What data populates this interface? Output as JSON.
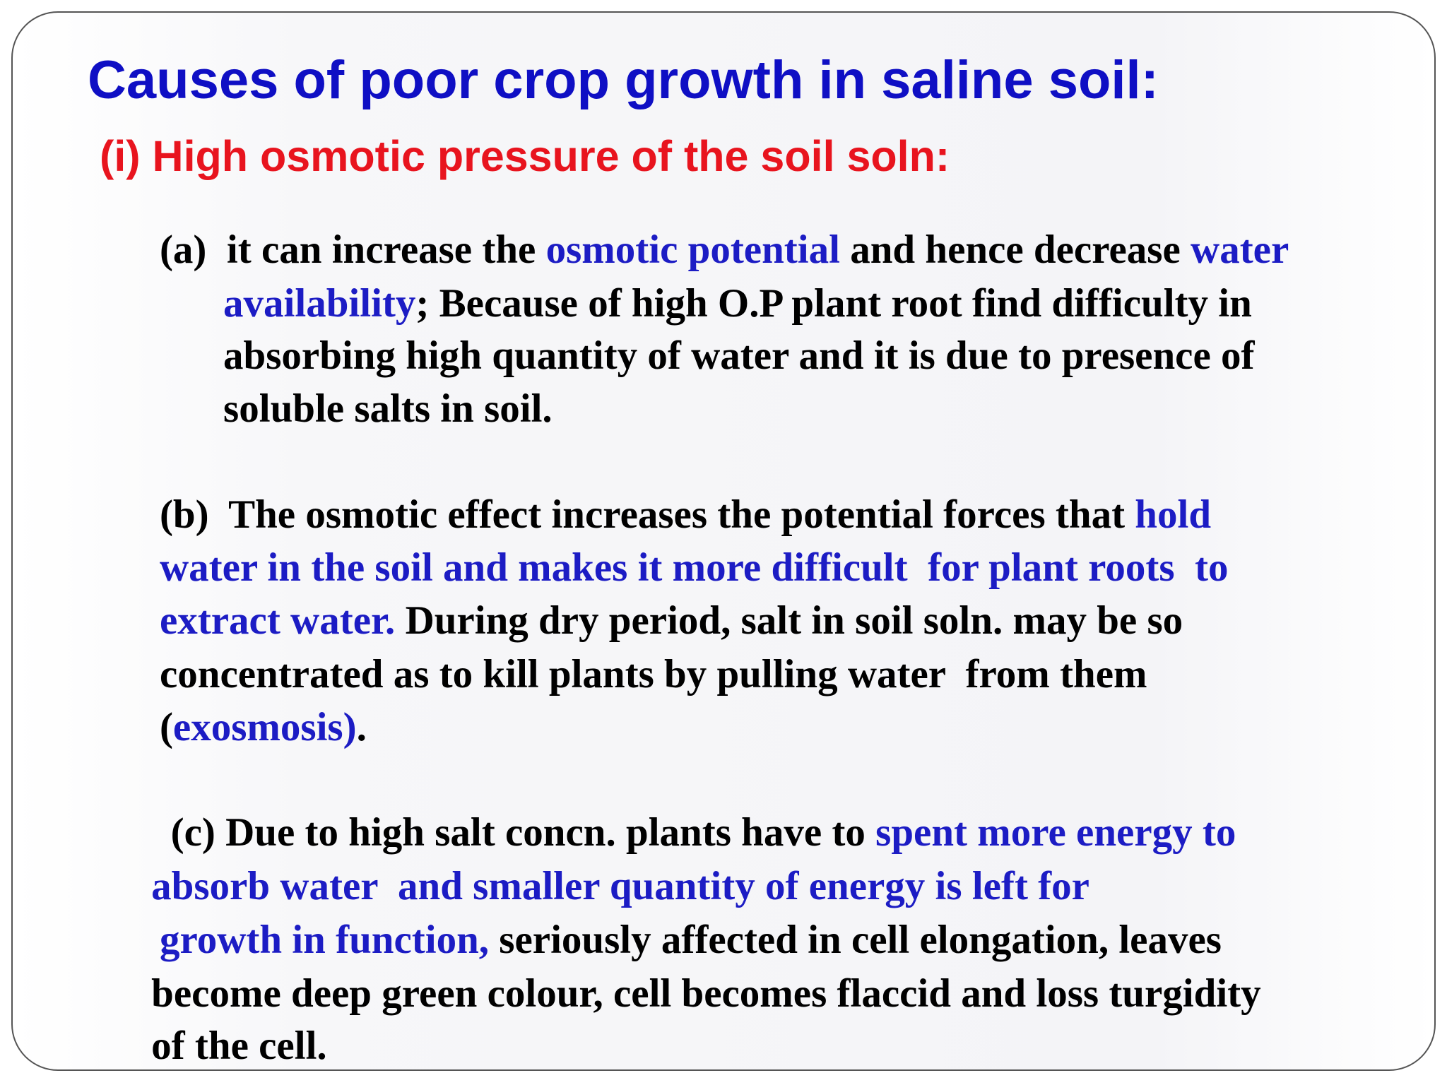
{
  "title": "Causes of poor crop growth in saline soil:",
  "subtitle": "(i) High osmotic pressure of the soil soln:",
  "paragraphs": [
    {
      "lines": [
        [
          {
            "text": "(a)  it can increase the ",
            "color": "#000000"
          },
          {
            "text": "osmotic potential",
            "color": "#1c1cc4"
          },
          {
            "text": " and hence decrease ",
            "color": "#000000"
          },
          {
            "text": "water",
            "color": "#1c1cc4"
          }
        ],
        [
          {
            "text": "availability",
            "color": "#1c1cc4"
          },
          {
            "text": "; Because of high O.P plant root find difficulty in",
            "color": "#000000"
          }
        ],
        [
          {
            "text": "absorbing high quantity of water and it is due to presence of",
            "color": "#000000"
          }
        ],
        [
          {
            "text": "soluble salts in soil.",
            "color": "#000000"
          }
        ]
      ]
    },
    {
      "lines": [
        [
          {
            "text": "(b)  The osmotic effect increases the potential forces that ",
            "color": "#000000"
          },
          {
            "text": "hold",
            "color": "#1c1cc4"
          }
        ],
        [
          {
            "text": "water in the soil and makes it more difficult  for plant roots  to",
            "color": "#1c1cc4"
          }
        ],
        [
          {
            "text": "extract water.",
            "color": "#1c1cc4"
          },
          {
            "text": " During dry period, salt in soil soln. may be so",
            "color": "#000000"
          }
        ],
        [
          {
            "text": "concentrated as to kill plants by pulling water  from them",
            "color": "#000000"
          }
        ],
        [
          {
            "text": "(",
            "color": "#000000"
          },
          {
            "text": "exosmosis)",
            "color": "#1c1cc4"
          },
          {
            "text": ".",
            "color": "#000000"
          }
        ]
      ]
    },
    {
      "lines": [
        [
          {
            "text": "(c) Due to high salt concn. plants have to ",
            "color": "#000000"
          },
          {
            "text": "spent more energy to",
            "color": "#1c1cc4"
          }
        ],
        [
          {
            "text": "absorb water  and smaller quantity of energy is left for",
            "color": "#1c1cc4"
          }
        ],
        [
          {
            "text": "growth in function,",
            "color": "#1c1cc4"
          },
          {
            "text": " seriously affected in cell elongation, leaves",
            "color": "#000000"
          }
        ],
        [
          {
            "text": "become deep green colour, cell becomes flaccid and loss turgidity",
            "color": "#000000"
          }
        ],
        [
          {
            "text": "of the cell.",
            "color": "#000000"
          }
        ]
      ]
    }
  ]
}
